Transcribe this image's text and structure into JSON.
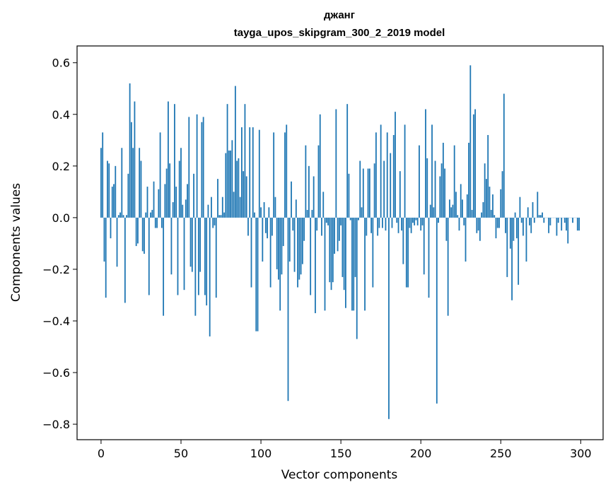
{
  "chart_data": {
    "type": "bar",
    "title": [
      "джанг",
      "tayga_upos_skipgram_300_2_2019 model"
    ],
    "xlabel": "Vector components",
    "ylabel": "Components values",
    "xlim": [
      -15,
      314
    ],
    "ylim": [
      -0.86,
      0.665
    ],
    "xticks": [
      0,
      50,
      100,
      150,
      200,
      250,
      300
    ],
    "xtick_labels": [
      "0",
      "50",
      "100",
      "150",
      "200",
      "250",
      "300"
    ],
    "yticks": [
      0.6,
      0.4,
      0.2,
      0.0,
      -0.2,
      -0.4,
      -0.6,
      -0.8
    ],
    "ytick_labels": [
      "0.6",
      "0.4",
      "0.2",
      "0.0",
      "−0.2",
      "−0.4",
      "−0.6",
      "−0.8"
    ],
    "grid": false,
    "bar_color": "#1f77b4",
    "series": [
      {
        "name": "components",
        "values": [
          0.27,
          0.33,
          -0.17,
          -0.31,
          0.22,
          0.21,
          -0.08,
          0.12,
          0.13,
          0.2,
          -0.19,
          0.01,
          0.02,
          0.27,
          0.01,
          -0.33,
          0.01,
          0.17,
          0.52,
          0.37,
          0.27,
          0.45,
          -0.11,
          -0.1,
          0.27,
          0.22,
          -0.13,
          -0.14,
          0.02,
          0.12,
          -0.3,
          0.02,
          0.03,
          0.14,
          -0.04,
          -0.04,
          0.11,
          0.33,
          -0.04,
          -0.38,
          0.13,
          0.19,
          0.45,
          0.21,
          -0.22,
          0.06,
          0.44,
          0.12,
          -0.3,
          0.22,
          0.27,
          0.05,
          -0.28,
          0.07,
          0.13,
          0.39,
          -0.19,
          -0.21,
          0.17,
          -0.38,
          0.4,
          -0.3,
          -0.21,
          0.37,
          0.39,
          -0.3,
          -0.34,
          0.05,
          -0.46,
          0.08,
          -0.04,
          -0.03,
          -0.31,
          0.15,
          0.01,
          0.01,
          0.08,
          0.02,
          0.25,
          0.44,
          0.26,
          0.26,
          0.3,
          0.1,
          0.51,
          0.22,
          0.23,
          0.08,
          0.35,
          0.18,
          0.44,
          0.16,
          -0.07,
          0.35,
          -0.27,
          0.35,
          0.02,
          -0.44,
          -0.44,
          0.34,
          0.04,
          -0.17,
          0.06,
          -0.06,
          -0.08,
          0.04,
          -0.27,
          -0.07,
          0.33,
          0.08,
          -0.2,
          -0.24,
          -0.36,
          -0.22,
          -0.11,
          0.33,
          0.36,
          -0.71,
          -0.17,
          0.14,
          -0.05,
          -0.21,
          0.07,
          -0.27,
          -0.24,
          -0.22,
          -0.18,
          -0.09,
          0.28,
          0.03,
          0.2,
          -0.3,
          0.03,
          0.16,
          -0.37,
          -0.05,
          0.28,
          0.4,
          -0.07,
          0.1,
          -0.36,
          -0.02,
          -0.03,
          -0.25,
          -0.28,
          -0.25,
          -0.14,
          0.42,
          -0.13,
          -0.09,
          -0.03,
          -0.23,
          -0.28,
          -0.35,
          0.44,
          0.17,
          -0.01,
          -0.36,
          -0.36,
          -0.23,
          -0.47,
          -0.01,
          0.22,
          0.04,
          0.19,
          -0.36,
          -0.07,
          0.19,
          0.19,
          -0.06,
          -0.27,
          0.21,
          0.33,
          -0.07,
          -0.04,
          0.36,
          -0.04,
          0.22,
          -0.05,
          0.33,
          -0.78,
          0.25,
          -0.04,
          0.32,
          0.41,
          -0.02,
          -0.06,
          0.18,
          -0.05,
          -0.18,
          0.36,
          -0.27,
          -0.27,
          -0.04,
          -0.06,
          -0.02,
          -0.03,
          -0.01,
          -0.03,
          0.28,
          -0.05,
          -0.03,
          -0.22,
          0.42,
          0.23,
          -0.31,
          0.05,
          0.36,
          0.04,
          0.22,
          -0.72,
          -0.02,
          0.16,
          0.21,
          0.29,
          0.19,
          -0.09,
          -0.38,
          0.07,
          0.04,
          0.05,
          0.28,
          0.1,
          0.01,
          -0.05,
          0.13,
          0.07,
          -0.03,
          -0.17,
          0.09,
          0.29,
          0.59,
          0.03,
          0.4,
          0.42,
          -0.06,
          -0.05,
          -0.09,
          0.02,
          0.06,
          0.21,
          0.15,
          0.32,
          0.12,
          0.03,
          0.09,
          0.01,
          -0.08,
          -0.04,
          -0.04,
          0.11,
          0.18,
          0.48,
          -0.06,
          -0.23,
          0.0,
          -0.12,
          -0.32,
          -0.09,
          0.02,
          -0.08,
          -0.26,
          0.08,
          -0.02,
          -0.07,
          0.0,
          -0.17,
          0.04,
          -0.03,
          -0.06,
          0.06,
          -0.02,
          0.0,
          0.1,
          0.01,
          0.01,
          0.02,
          -0.02,
          0.0,
          0.0,
          -0.06,
          -0.03,
          0.0,
          0.0,
          0.0,
          -0.07,
          -0.02,
          0.0,
          -0.05,
          0.0,
          -0.02,
          -0.05,
          -0.1,
          0.0,
          0.0,
          -0.02,
          0.0,
          0.0,
          -0.05,
          -0.05
        ]
      }
    ]
  }
}
